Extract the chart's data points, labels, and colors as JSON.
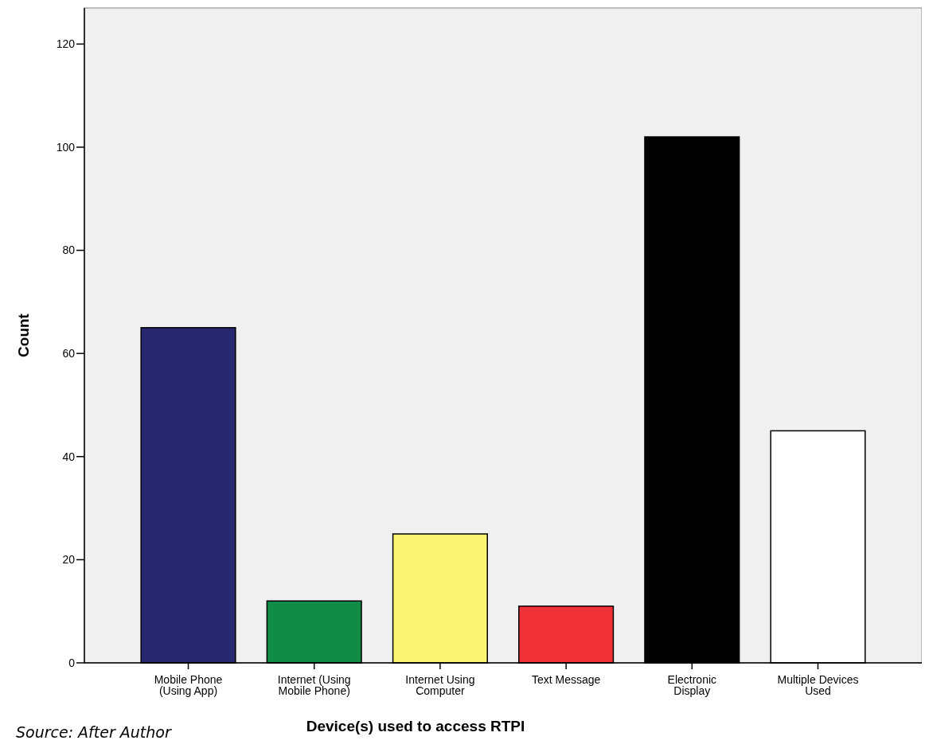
{
  "chart_data": {
    "type": "bar",
    "xlabel": "Device(s) used to access RTPI",
    "ylabel": "Count",
    "categories": [
      "Mobile Phone\n(Using App)",
      "Internet (Using\nMobile Phone)",
      "Internet Using\nComputer",
      "Text Message",
      "Electronic\nDisplay",
      "Multiple Devices\nUsed"
    ],
    "values": [
      65,
      12,
      25,
      11,
      102,
      45
    ],
    "colors": [
      "#282870",
      "#108c46",
      "#faf573",
      "#f03238",
      "#000000",
      "#ffffff"
    ],
    "ylim": [
      0,
      127
    ],
    "yticks": [
      0,
      20,
      40,
      60,
      80,
      100,
      120
    ],
    "grid": false,
    "annotations": [
      "Source: After Author"
    ]
  }
}
